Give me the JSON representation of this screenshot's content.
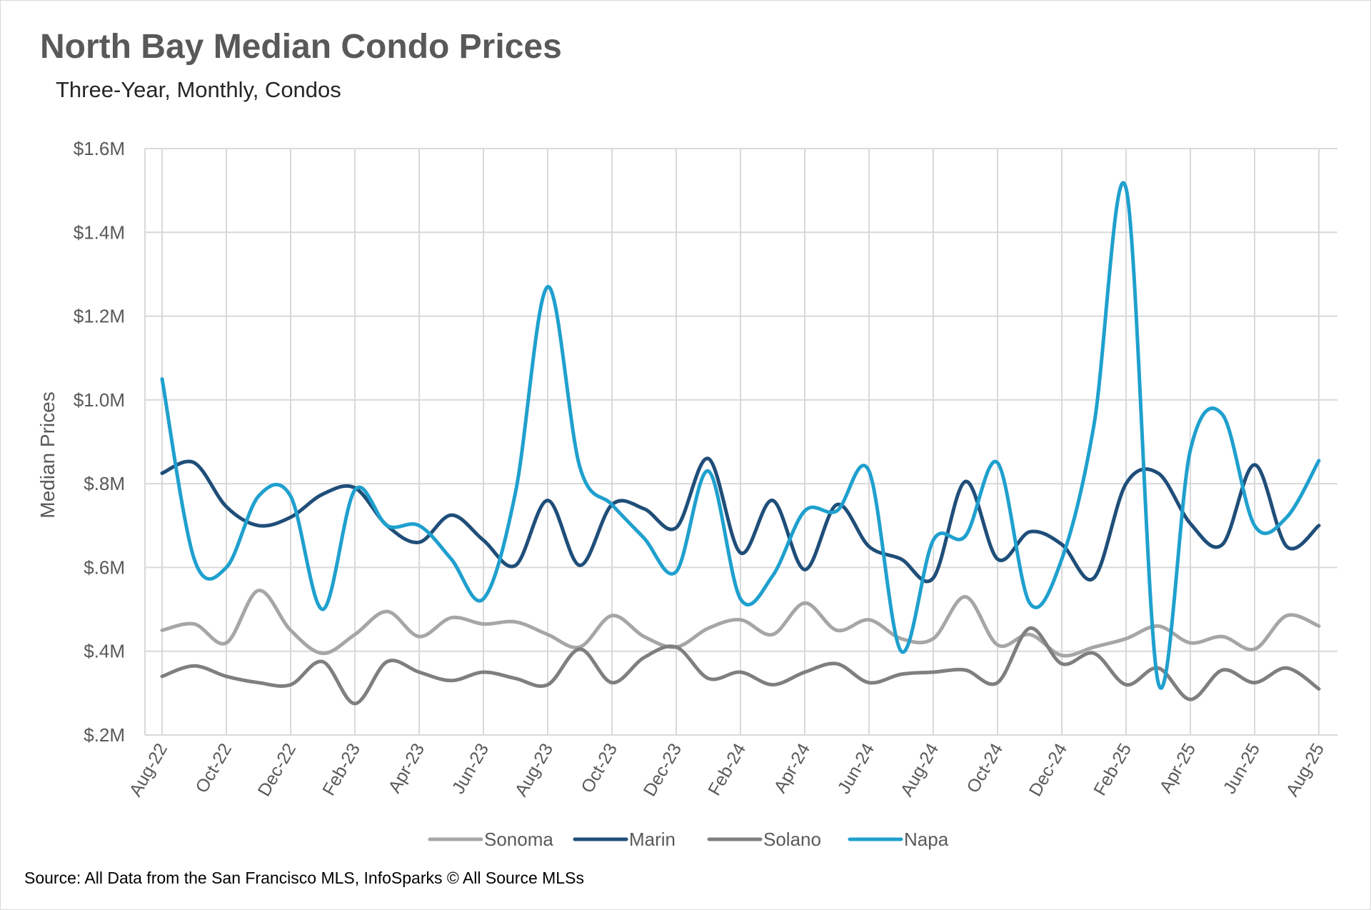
{
  "title": "North Bay Median Condo Prices",
  "subtitle": "Three-Year, Monthly, Condos",
  "source": "Source: All Data from the San Francisco MLS, InfoSparks © All Source MLSs",
  "chart_data": {
    "type": "line",
    "ylabel": "Median Prices",
    "ylim": [
      200000,
      1600000
    ],
    "ytick_values": [
      200000,
      400000,
      600000,
      800000,
      1000000,
      1200000,
      1400000,
      1600000
    ],
    "ytick_labels": [
      "$.2M",
      "$.4M",
      "$.6M",
      "$.8M",
      "$1.0M",
      "$1.2M",
      "$1.4M",
      "$1.6M"
    ],
    "x": [
      "Aug-22",
      "Sep-22",
      "Oct-22",
      "Nov-22",
      "Dec-22",
      "Jan-23",
      "Feb-23",
      "Mar-23",
      "Apr-23",
      "May-23",
      "Jun-23",
      "Jul-23",
      "Aug-23",
      "Sep-23",
      "Oct-23",
      "Nov-23",
      "Dec-23",
      "Jan-24",
      "Feb-24",
      "Mar-24",
      "Apr-24",
      "May-24",
      "Jun-24",
      "Jul-24",
      "Aug-24",
      "Sep-24",
      "Oct-24",
      "Nov-24",
      "Dec-24",
      "Jan-25",
      "Feb-25",
      "Mar-25",
      "Apr-25",
      "May-25",
      "Jun-25",
      "Jul-25",
      "Aug-25"
    ],
    "xtick_labels": [
      "Aug-22",
      "Oct-22",
      "Dec-22",
      "Feb-23",
      "Apr-23",
      "Jun-23",
      "Aug-23",
      "Oct-23",
      "Dec-23",
      "Feb-24",
      "Apr-24",
      "Jun-24",
      "Aug-24",
      "Oct-24",
      "Dec-24",
      "Feb-25",
      "Apr-25",
      "Jun-25",
      "Aug-25"
    ],
    "grid": true,
    "legend_position": "bottom",
    "series": [
      {
        "name": "Sonoma",
        "color": "#a6a6a6",
        "values": [
          450000,
          465000,
          420000,
          545000,
          450000,
          395000,
          440000,
          495000,
          435000,
          480000,
          465000,
          470000,
          440000,
          410000,
          485000,
          435000,
          410000,
          455000,
          475000,
          440000,
          515000,
          450000,
          475000,
          430000,
          430000,
          530000,
          415000,
          440000,
          390000,
          410000,
          430000,
          460000,
          420000,
          435000,
          405000,
          485000,
          460000
        ]
      },
      {
        "name": "Marin",
        "color": "#1f4e79",
        "values": [
          825000,
          850000,
          745000,
          700000,
          720000,
          775000,
          790000,
          700000,
          660000,
          725000,
          665000,
          605000,
          760000,
          605000,
          750000,
          740000,
          695000,
          860000,
          635000,
          760000,
          595000,
          750000,
          650000,
          620000,
          575000,
          805000,
          620000,
          685000,
          655000,
          575000,
          800000,
          825000,
          705000,
          655000,
          845000,
          650000,
          700000
        ]
      },
      {
        "name": "Solano",
        "color": "#7f7f7f",
        "values": [
          340000,
          365000,
          340000,
          325000,
          320000,
          375000,
          275000,
          375000,
          350000,
          330000,
          350000,
          335000,
          320000,
          405000,
          325000,
          385000,
          410000,
          335000,
          350000,
          320000,
          350000,
          370000,
          325000,
          345000,
          350000,
          355000,
          325000,
          455000,
          370000,
          395000,
          320000,
          360000,
          285000,
          355000,
          325000,
          360000,
          310000
        ]
      },
      {
        "name": "Napa",
        "color": "#1fa0ce",
        "values": [
          1050000,
          620000,
          600000,
          770000,
          770000,
          500000,
          785000,
          700000,
          700000,
          620000,
          525000,
          780000,
          1270000,
          840000,
          750000,
          670000,
          590000,
          830000,
          525000,
          580000,
          735000,
          735000,
          830000,
          400000,
          665000,
          675000,
          850000,
          515000,
          620000,
          940000,
          1505000,
          325000,
          880000,
          965000,
          700000,
          720000,
          855000
        ]
      }
    ]
  }
}
